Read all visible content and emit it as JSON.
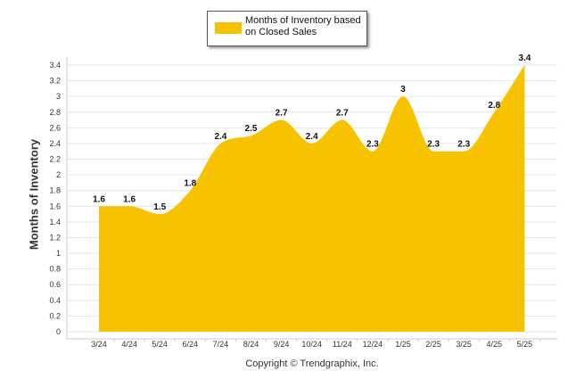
{
  "chart_data": {
    "type": "area",
    "categories": [
      "3/24",
      "4/24",
      "5/24",
      "6/24",
      "7/24",
      "8/24",
      "9/24",
      "10/24",
      "11/24",
      "12/24",
      "1/25",
      "2/25",
      "3/25",
      "4/25",
      "5/25"
    ],
    "series": [
      {
        "name": "Months of Inventory based on Closed Sales",
        "values": [
          1.6,
          1.6,
          1.5,
          1.8,
          2.4,
          2.5,
          2.7,
          2.4,
          2.7,
          2.3,
          3,
          2.3,
          2.3,
          2.8,
          3.4
        ],
        "labels": [
          "1.6",
          "1.6",
          "1.5",
          "1.8",
          "2.4",
          "2.5",
          "2.7",
          "2.4",
          "2.7",
          "2.3",
          "3",
          "2.3",
          "2.3",
          "2.8",
          "3.4"
        ]
      }
    ],
    "ylabel": "Months of Inventory",
    "ylim": [
      0,
      3.4
    ],
    "yticks": [
      "0",
      "0.2",
      "0.4",
      "0.6",
      "0.8",
      "1",
      "1.2",
      "1.4",
      "1.6",
      "1.8",
      "2",
      "2.2",
      "2.4",
      "2.6",
      "2.8",
      "3",
      "3.2",
      "3.4"
    ],
    "grid": true,
    "legend_position": "top-center",
    "fill_color": "#F7C300",
    "grid_color": "#e6e6e6",
    "legend_label_line1": "Months of Inventory based",
    "legend_label_line2": "on Closed Sales"
  },
  "footer": {
    "copyright": "Copyright © Trendgraphix, Inc."
  }
}
